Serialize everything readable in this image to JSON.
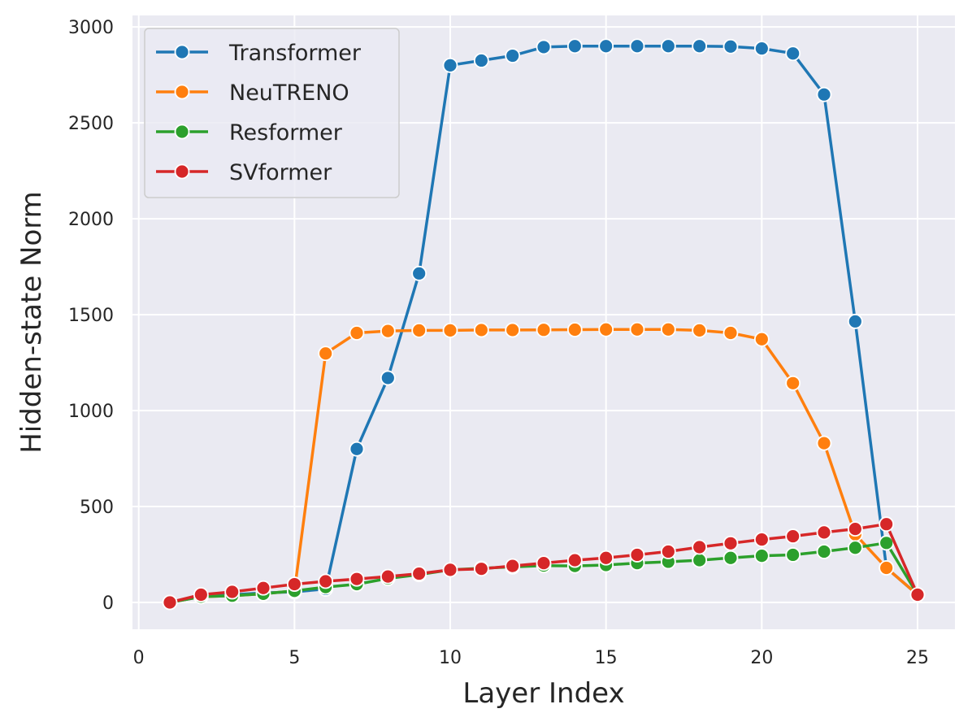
{
  "chart_data": {
    "type": "line",
    "title": "",
    "xlabel": "Layer Index",
    "ylabel": "Hidden-state Norm",
    "xlim": [
      -0.2,
      26.2
    ],
    "ylim": [
      -140,
      3060
    ],
    "xticks": [
      0,
      5,
      10,
      15,
      20,
      25
    ],
    "yticks": [
      0,
      500,
      1000,
      1500,
      2000,
      2500,
      3000
    ],
    "grid": true,
    "legend_position": "top-left",
    "x": [
      1,
      2,
      3,
      4,
      5,
      6,
      7,
      8,
      9,
      10,
      11,
      12,
      13,
      14,
      15,
      16,
      17,
      18,
      19,
      20,
      21,
      22,
      23,
      24,
      25
    ],
    "series": [
      {
        "name": "Transformer",
        "color": "#1f77b4",
        "values": [
          0,
          30,
          40,
          50,
          55,
          70,
          800,
          1170,
          1715,
          2800,
          2825,
          2850,
          2895,
          2900,
          2900,
          2900,
          2900,
          2900,
          2898,
          2888,
          2862,
          2648,
          1465,
          180,
          40
        ]
      },
      {
        "name": "NeuTRENO",
        "color": "#ff7f0e",
        "values": [
          0,
          30,
          35,
          45,
          60,
          1298,
          1405,
          1415,
          1418,
          1418,
          1420,
          1420,
          1421,
          1422,
          1423,
          1423,
          1423,
          1418,
          1405,
          1372,
          1143,
          830,
          355,
          180,
          40
        ]
      },
      {
        "name": "Resformer",
        "color": "#2ca02c",
        "values": [
          0,
          30,
          35,
          45,
          60,
          80,
          95,
          125,
          145,
          170,
          178,
          185,
          192,
          190,
          195,
          205,
          212,
          220,
          232,
          243,
          248,
          265,
          285,
          310,
          40
        ]
      },
      {
        "name": "SVformer",
        "color": "#d62728",
        "values": [
          0,
          40,
          55,
          75,
          95,
          110,
          122,
          135,
          150,
          170,
          175,
          190,
          205,
          220,
          232,
          248,
          265,
          288,
          308,
          328,
          345,
          365,
          383,
          408,
          40
        ]
      }
    ]
  }
}
